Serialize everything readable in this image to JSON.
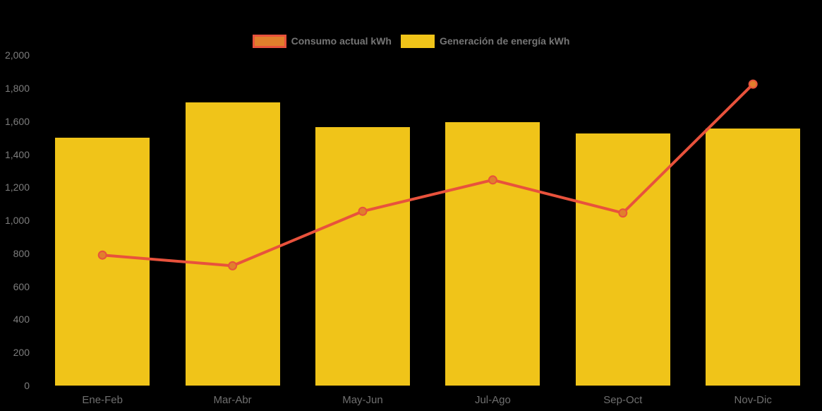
{
  "legend": {
    "items": [
      {
        "id": "consumo",
        "label": "Consumo actual kWh",
        "swatch_fill": "#e07f2c",
        "swatch_border": "#e8523c"
      },
      {
        "id": "generacion",
        "label": "Generación de energía kWh",
        "swatch_fill": "#f0c419",
        "swatch_border": "#f0c419"
      }
    ]
  },
  "chart_data": {
    "type": "bar",
    "subtype": "bar-line-combo",
    "categories": [
      "Ene-Feb",
      "Mar-Abr",
      "May-Jun",
      "Jul-Ago",
      "Sep-Oct",
      "Nov-Dic"
    ],
    "series": [
      {
        "name": "Generación de energía kWh",
        "render": "bar",
        "color": "#f0c419",
        "values": [
          1500,
          1715,
          1565,
          1595,
          1525,
          1555
        ]
      },
      {
        "name": "Consumo actual kWh",
        "render": "line",
        "color": "#e8523c",
        "marker_fill": "#e07f2c",
        "marker_stroke": "#e8523c",
        "values": [
          790,
          725,
          1055,
          1245,
          1045,
          1825
        ]
      }
    ],
    "title": "",
    "xlabel": "",
    "ylabel": "",
    "ylim": [
      0,
      2000
    ],
    "ytick_interval": 200,
    "ytick_labels": [
      "0",
      "200",
      "400",
      "600",
      "800",
      "1,000",
      "1,200",
      "1,400",
      "1,600",
      "1,800",
      "2,000"
    ],
    "grid": false,
    "legend_position": "top-center",
    "background_color": "#000000",
    "axis_text_color": "#7d7d7d"
  }
}
